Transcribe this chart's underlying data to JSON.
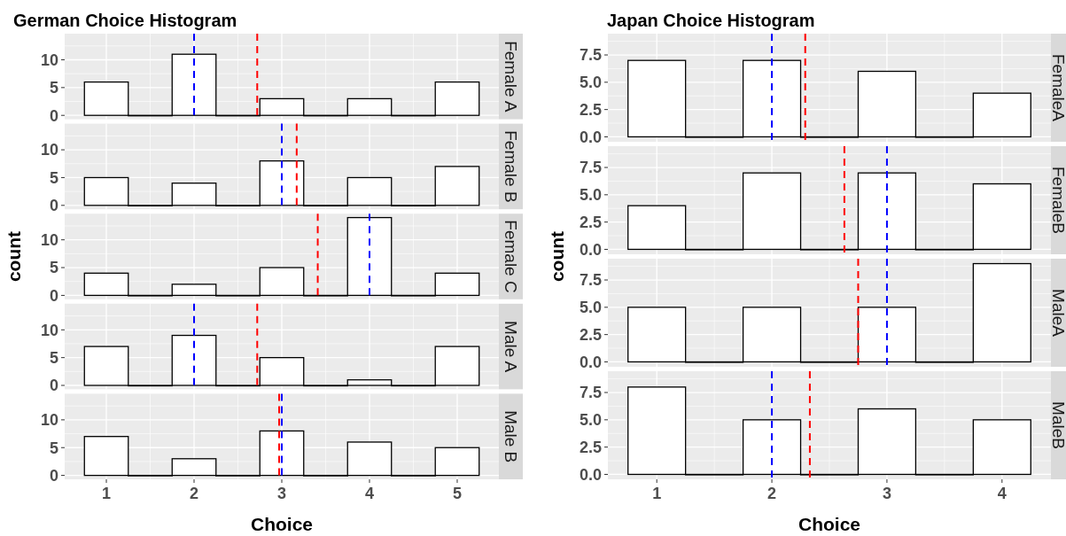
{
  "chart_data": [
    {
      "type": "histogram",
      "title": "German Choice Histogram",
      "subtitle": "Female A",
      "bins": [
        0.75,
        1.25,
        1.75,
        2.25,
        2.75,
        3.25,
        3.75,
        4.25,
        4.75,
        5.25
      ],
      "values": [
        6,
        0,
        11,
        0,
        3,
        0,
        3,
        0,
        6
      ],
      "color": "#ffffff",
      "xlim": [
        0.525,
        5.475
      ],
      "xticks": [
        1,
        2,
        3,
        4,
        5
      ],
      "ylim": [
        -0.7,
        14.7
      ],
      "yticks": [
        0,
        5,
        10
      ],
      "grid": true,
      "tick_labels": "y",
      "ref_lines": [
        {
          "axis": "x",
          "value": 2,
          "color": "#0000ff",
          "line_style": "dashed"
        },
        {
          "axis": "x",
          "value": 2.72,
          "color": "#ff0000",
          "line_style": "dashed"
        }
      ]
    },
    {
      "type": "histogram",
      "subtitle": "Female B",
      "bins": [
        0.75,
        1.25,
        1.75,
        2.25,
        2.75,
        3.25,
        3.75,
        4.25,
        4.75,
        5.25
      ],
      "values": [
        5,
        0,
        4,
        0,
        8,
        0,
        5,
        0,
        7
      ],
      "color": "#ffffff",
      "xlim": [
        0.525,
        5.475
      ],
      "xticks": [
        1,
        2,
        3,
        4,
        5
      ],
      "ylim": [
        -0.7,
        14.7
      ],
      "yticks": [
        0,
        5,
        10
      ],
      "grid": true,
      "tick_labels": "y",
      "ref_lines": [
        {
          "axis": "x",
          "value": 3,
          "color": "#0000ff",
          "line_style": "dashed"
        },
        {
          "axis": "x",
          "value": 3.17,
          "color": "#ff0000",
          "line_style": "dashed"
        }
      ]
    },
    {
      "type": "histogram",
      "subtitle": "Female C",
      "ylabel": "count",
      "bins": [
        0.75,
        1.25,
        1.75,
        2.25,
        2.75,
        3.25,
        3.75,
        4.25,
        4.75,
        5.25
      ],
      "values": [
        4,
        0,
        2,
        0,
        5,
        0,
        14,
        0,
        4
      ],
      "color": "#ffffff",
      "xlim": [
        0.525,
        5.475
      ],
      "xticks": [
        1,
        2,
        3,
        4,
        5
      ],
      "ylim": [
        -0.7,
        14.7
      ],
      "yticks": [
        0,
        5,
        10
      ],
      "grid": true,
      "tick_labels": "y",
      "ref_lines": [
        {
          "axis": "x",
          "value": 4,
          "color": "#0000ff",
          "line_style": "dashed"
        },
        {
          "axis": "x",
          "value": 3.41,
          "color": "#ff0000",
          "line_style": "dashed"
        }
      ]
    },
    {
      "type": "histogram",
      "subtitle": "Male A",
      "bins": [
        0.75,
        1.25,
        1.75,
        2.25,
        2.75,
        3.25,
        3.75,
        4.25,
        4.75,
        5.25
      ],
      "values": [
        7,
        0,
        9,
        0,
        5,
        0,
        1,
        0,
        7
      ],
      "color": "#ffffff",
      "xlim": [
        0.525,
        5.475
      ],
      "xticks": [
        1,
        2,
        3,
        4,
        5
      ],
      "ylim": [
        -0.7,
        14.7
      ],
      "yticks": [
        0,
        5,
        10
      ],
      "grid": true,
      "tick_labels": "y",
      "ref_lines": [
        {
          "axis": "x",
          "value": 2,
          "color": "#0000ff",
          "line_style": "dashed"
        },
        {
          "axis": "x",
          "value": 2.72,
          "color": "#ff0000",
          "line_style": "dashed"
        }
      ]
    },
    {
      "type": "histogram",
      "subtitle": "Male B",
      "xlabel": "Choice",
      "bins": [
        0.75,
        1.25,
        1.75,
        2.25,
        2.75,
        3.25,
        3.75,
        4.25,
        4.75,
        5.25
      ],
      "values": [
        7,
        0,
        3,
        0,
        8,
        0,
        6,
        0,
        5
      ],
      "color": "#ffffff",
      "xlim": [
        0.525,
        5.475
      ],
      "xticks": [
        1,
        2,
        3,
        4,
        5
      ],
      "ylim": [
        -0.7,
        14.7
      ],
      "yticks": [
        0,
        5,
        10
      ],
      "grid": true,
      "ref_lines": [
        {
          "axis": "x",
          "value": 3,
          "color": "#0000ff",
          "line_style": "dashed"
        },
        {
          "axis": "x",
          "value": 2.97,
          "color": "#ff0000",
          "line_style": "dashed"
        }
      ]
    },
    {
      "type": "histogram",
      "title": "Japan Choice Histogram",
      "subtitle": "FemaleA",
      "bins": [
        0.75,
        1.25,
        1.75,
        2.25,
        2.75,
        3.25,
        3.75,
        4.25
      ],
      "values": [
        7,
        0,
        7,
        0,
        6,
        0,
        4
      ],
      "color": "#ffffff",
      "xlim": [
        0.575,
        4.425
      ],
      "xticks": [
        1,
        2,
        3,
        4
      ],
      "ylim": [
        -0.45,
        9.45
      ],
      "yticks": [
        {
          "value": 0,
          "label": "0.0"
        },
        {
          "value": 2.5,
          "label": "2.5"
        },
        {
          "value": 5,
          "label": "5.0"
        },
        {
          "value": 7.5,
          "label": "7.5"
        }
      ],
      "grid": true,
      "tick_labels": "y",
      "ref_lines": [
        {
          "axis": "x",
          "value": 2,
          "color": "#0000ff",
          "line_style": "dashed"
        },
        {
          "axis": "x",
          "value": 2.29,
          "color": "#ff0000",
          "line_style": "dashed"
        }
      ]
    },
    {
      "type": "histogram",
      "subtitle": "FemaleB",
      "ylabel": "count",
      "bins": [
        0.75,
        1.25,
        1.75,
        2.25,
        2.75,
        3.25,
        3.75,
        4.25
      ],
      "values": [
        4,
        0,
        7,
        0,
        7,
        0,
        6
      ],
      "color": "#ffffff",
      "xlim": [
        0.575,
        4.425
      ],
      "xticks": [
        1,
        2,
        3,
        4
      ],
      "ylim": [
        -0.45,
        9.45
      ],
      "yticks": [
        {
          "value": 0,
          "label": "0.0"
        },
        {
          "value": 2.5,
          "label": "2.5"
        },
        {
          "value": 5,
          "label": "5.0"
        },
        {
          "value": 7.5,
          "label": "7.5"
        }
      ],
      "grid": true,
      "tick_labels": "y",
      "ref_lines": [
        {
          "axis": "x",
          "value": 3,
          "color": "#0000ff",
          "line_style": "dashed"
        },
        {
          "axis": "x",
          "value": 2.63,
          "color": "#ff0000",
          "line_style": "dashed"
        }
      ]
    },
    {
      "type": "histogram",
      "subtitle": "MaleA",
      "bins": [
        0.75,
        1.25,
        1.75,
        2.25,
        2.75,
        3.25,
        3.75,
        4.25
      ],
      "values": [
        5,
        0,
        5,
        0,
        5,
        0,
        9
      ],
      "color": "#ffffff",
      "xlim": [
        0.575,
        4.425
      ],
      "xticks": [
        1,
        2,
        3,
        4
      ],
      "ylim": [
        -0.45,
        9.45
      ],
      "yticks": [
        {
          "value": 0,
          "label": "0.0"
        },
        {
          "value": 2.5,
          "label": "2.5"
        },
        {
          "value": 5,
          "label": "5.0"
        },
        {
          "value": 7.5,
          "label": "7.5"
        }
      ],
      "grid": true,
      "tick_labels": "y",
      "ref_lines": [
        {
          "axis": "x",
          "value": 3,
          "color": "#0000ff",
          "line_style": "dashed"
        },
        {
          "axis": "x",
          "value": 2.75,
          "color": "#ff0000",
          "line_style": "dashed"
        }
      ]
    },
    {
      "type": "histogram",
      "subtitle": "MaleB",
      "xlabel": "Choice",
      "bins": [
        0.75,
        1.25,
        1.75,
        2.25,
        2.75,
        3.25,
        3.75,
        4.25
      ],
      "values": [
        8,
        0,
        5,
        0,
        6,
        0,
        5
      ],
      "color": "#ffffff",
      "xlim": [
        0.575,
        4.425
      ],
      "xticks": [
        1,
        2,
        3,
        4
      ],
      "ylim": [
        -0.45,
        9.45
      ],
      "yticks": [
        {
          "value": 0,
          "label": "0.0"
        },
        {
          "value": 2.5,
          "label": "2.5"
        },
        {
          "value": 5,
          "label": "5.0"
        },
        {
          "value": 7.5,
          "label": "7.5"
        }
      ],
      "grid": true,
      "ref_lines": [
        {
          "axis": "x",
          "value": 2,
          "color": "#0000ff",
          "line_style": "dashed"
        },
        {
          "axis": "x",
          "value": 2.33,
          "color": "#ff0000",
          "line_style": "dashed"
        }
      ]
    }
  ]
}
